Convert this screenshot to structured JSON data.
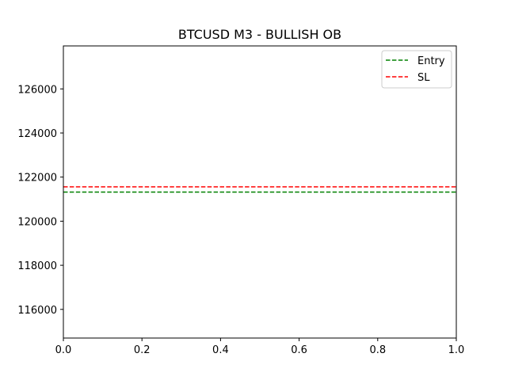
{
  "chart_data": {
    "type": "line",
    "title": "BTCUSD M3 - BULLISH OB",
    "xlabel": "",
    "ylabel": "",
    "xlim": [
      0.0,
      1.0
    ],
    "ylim": [
      114700,
      127950
    ],
    "x_ticks": [
      "0.0",
      "0.2",
      "0.4",
      "0.6",
      "0.8",
      "1.0"
    ],
    "x_tick_values": [
      0.0,
      0.2,
      0.4,
      0.6,
      0.8,
      1.0
    ],
    "y_ticks": [
      "116000",
      "118000",
      "120000",
      "122000",
      "124000",
      "126000"
    ],
    "y_tick_values": [
      116000,
      118000,
      120000,
      122000,
      124000,
      126000
    ],
    "grid": false,
    "legend_position": "top-right",
    "series": [
      {
        "name": "Entry",
        "style": "dashed",
        "color": "#008000",
        "x": [
          0.0,
          1.0
        ],
        "y": [
          121320,
          121320
        ]
      },
      {
        "name": "SL",
        "style": "dashed",
        "color": "#ff0000",
        "x": [
          0.0,
          1.0
        ],
        "y": [
          121560,
          121560
        ]
      }
    ]
  }
}
